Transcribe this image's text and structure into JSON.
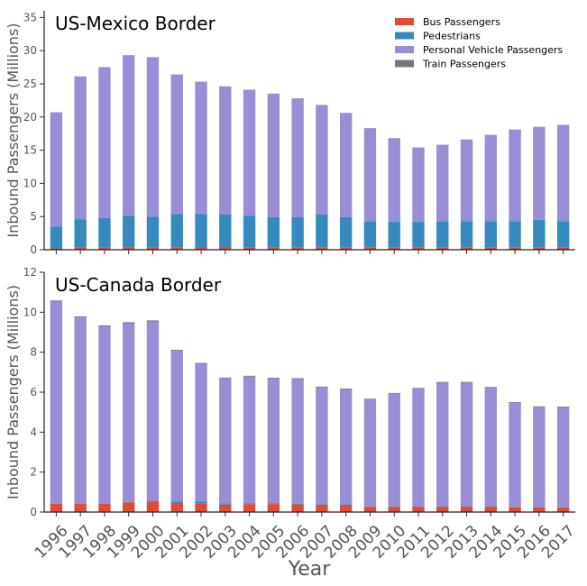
{
  "chart_data": [
    {
      "type": "bar",
      "stacked": true,
      "title": "US-Mexico Border",
      "ylabel": "Inbound Passengers (Millions)",
      "xlabel": "",
      "ylim": [
        0,
        36
      ],
      "yticks": [
        0,
        5,
        10,
        15,
        20,
        25,
        30,
        35
      ],
      "categories": [
        "1996",
        "1997",
        "1998",
        "1999",
        "2000",
        "2001",
        "2002",
        "2003",
        "2004",
        "2005",
        "2006",
        "2007",
        "2008",
        "2009",
        "2010",
        "2011",
        "2012",
        "2013",
        "2014",
        "2015",
        "2016",
        "2017"
      ],
      "legend": {
        "position": "top-right"
      },
      "series": [
        {
          "name": "Bus Passengers",
          "color": "#E24A33",
          "values": [
            0.2,
            0.3,
            0.3,
            0.3,
            0.3,
            0.3,
            0.4,
            0.4,
            0.3,
            0.3,
            0.3,
            0.3,
            0.3,
            0.3,
            0.3,
            0.3,
            0.3,
            0.3,
            0.3,
            0.3,
            0.3,
            0.3
          ]
        },
        {
          "name": "Pedestrians",
          "color": "#348ABD",
          "values": [
            3.3,
            4.3,
            4.5,
            4.8,
            4.7,
            5.1,
            5.0,
            4.9,
            4.8,
            4.6,
            4.6,
            5.0,
            4.6,
            4.0,
            3.9,
            3.9,
            4.0,
            4.0,
            4.0,
            4.0,
            4.2,
            4.0
          ]
        },
        {
          "name": "Personal Vehicle Passengers",
          "color": "#988ED5",
          "values": [
            17.2,
            21.5,
            22.7,
            24.2,
            24.0,
            21.0,
            19.9,
            19.3,
            19.0,
            18.6,
            17.9,
            16.5,
            15.7,
            14.0,
            12.6,
            11.2,
            11.5,
            12.3,
            13.0,
            13.8,
            14.0,
            14.5
          ]
        },
        {
          "name": "Train Passengers",
          "color": "#777777",
          "values": [
            0.02,
            0.02,
            0.02,
            0.02,
            0.02,
            0.02,
            0.02,
            0.02,
            0.02,
            0.02,
            0.02,
            0.02,
            0.02,
            0.02,
            0.02,
            0.02,
            0.02,
            0.02,
            0.02,
            0.02,
            0.02,
            0.02
          ]
        }
      ]
    },
    {
      "type": "bar",
      "stacked": true,
      "title": "US-Canada Border",
      "ylabel": "Inbound Passengers (Millions)",
      "xlabel": "Year",
      "ylim": [
        0,
        12
      ],
      "yticks": [
        0,
        2,
        4,
        6,
        8,
        10,
        12
      ],
      "categories": [
        "1996",
        "1997",
        "1998",
        "1999",
        "2000",
        "2001",
        "2002",
        "2003",
        "2004",
        "2005",
        "2006",
        "2007",
        "2008",
        "2009",
        "2010",
        "2011",
        "2012",
        "2013",
        "2014",
        "2015",
        "2016",
        "2017"
      ],
      "series": [
        {
          "name": "Bus Passengers",
          "color": "#E24A33",
          "values": [
            0.42,
            0.42,
            0.42,
            0.48,
            0.52,
            0.45,
            0.42,
            0.37,
            0.4,
            0.4,
            0.38,
            0.36,
            0.36,
            0.26,
            0.25,
            0.25,
            0.25,
            0.25,
            0.25,
            0.24,
            0.23,
            0.22
          ]
        },
        {
          "name": "Pedestrians",
          "color": "#348ABD",
          "values": [
            0.02,
            0.02,
            0.02,
            0.02,
            0.02,
            0.08,
            0.1,
            0.07,
            0.03,
            0.03,
            0.03,
            0.03,
            0.03,
            0.02,
            0.02,
            0.02,
            0.02,
            0.02,
            0.02,
            0.02,
            0.02,
            0.02
          ]
        },
        {
          "name": "Personal Vehicle Passengers",
          "color": "#988ED5",
          "values": [
            10.1,
            9.3,
            8.85,
            8.95,
            9.0,
            7.55,
            6.9,
            6.25,
            6.35,
            6.25,
            6.25,
            5.85,
            5.75,
            5.35,
            5.65,
            5.9,
            6.2,
            6.2,
            5.95,
            5.2,
            5.0,
            5.0
          ]
        },
        {
          "name": "Train Passengers",
          "color": "#777777",
          "values": [
            0.05,
            0.05,
            0.05,
            0.05,
            0.05,
            0.04,
            0.04,
            0.04,
            0.04,
            0.04,
            0.04,
            0.04,
            0.04,
            0.04,
            0.04,
            0.04,
            0.04,
            0.04,
            0.04,
            0.04,
            0.04,
            0.04
          ]
        }
      ]
    }
  ]
}
